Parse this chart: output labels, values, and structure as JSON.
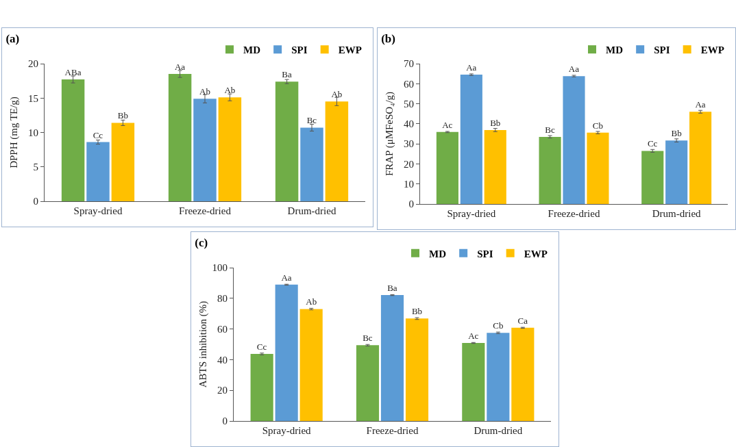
{
  "chart_data": [
    {
      "type": "bar",
      "title": "(a)",
      "ylabel": "DPPH (mg TE/g)",
      "categories": [
        "Spray-dried",
        "Freeze-dried",
        "Drum-dried"
      ],
      "ylim": [
        0,
        20
      ],
      "yticks": [
        0,
        5,
        10,
        15,
        20
      ],
      "grid": false,
      "legend": "top right",
      "series": [
        {
          "name": "MD",
          "color": "#70ad47",
          "values": [
            17.7,
            18.5,
            17.4
          ],
          "errors": [
            0.5,
            0.5,
            0.3
          ],
          "value_labels": [
            "ABa",
            "Aa",
            "Ba"
          ]
        },
        {
          "name": "SPI",
          "color": "#5b9bd5",
          "values": [
            8.6,
            14.9,
            10.7
          ],
          "errors": [
            0.3,
            0.6,
            0.5
          ],
          "value_labels": [
            "Cc",
            "Ab",
            "Bc"
          ]
        },
        {
          "name": "EWP",
          "color": "#ffc000",
          "values": [
            11.4,
            15.1,
            14.5
          ],
          "errors": [
            0.4,
            0.5,
            0.6
          ],
          "value_labels": [
            "Bb",
            "Ab",
            "Ab"
          ]
        }
      ]
    },
    {
      "type": "bar",
      "title": "(b)",
      "ylabel": "FRAP (μMFeSO₄/g)",
      "categories": [
        "Spray-dried",
        "Freeze-dried",
        "Drum-dried"
      ],
      "ylim": [
        0,
        70
      ],
      "yticks": [
        0,
        10,
        20,
        30,
        40,
        50,
        60,
        70
      ],
      "grid": false,
      "legend": "top right",
      "series": [
        {
          "name": "MD",
          "color": "#70ad47",
          "values": [
            35.9,
            33.5,
            26.5
          ],
          "errors": [
            0.3,
            0.6,
            0.7
          ],
          "value_labels": [
            "Ac",
            "Bc",
            "Cc"
          ]
        },
        {
          "name": "SPI",
          "color": "#5b9bd5",
          "values": [
            64.5,
            63.8,
            31.7
          ],
          "errors": [
            0.4,
            0.4,
            0.8
          ],
          "value_labels": [
            "Aa",
            "Aa",
            "Bb"
          ]
        },
        {
          "name": "EWP",
          "color": "#ffc000",
          "values": [
            36.9,
            35.6,
            46.0
          ],
          "errors": [
            0.8,
            0.6,
            0.7
          ],
          "value_labels": [
            "Bb",
            "Cb",
            "Aa"
          ]
        }
      ]
    },
    {
      "type": "bar",
      "title": "(c)",
      "ylabel": "ABTS inhibition (%)",
      "categories": [
        "Spray-dried",
        "Freeze-dried",
        "Drum-dried"
      ],
      "ylim": [
        0,
        100
      ],
      "yticks": [
        0,
        20,
        40,
        60,
        80,
        100
      ],
      "grid": false,
      "legend": "top right",
      "series": [
        {
          "name": "MD",
          "color": "#70ad47",
          "values": [
            43.7,
            49.4,
            50.9
          ],
          "errors": [
            0.6,
            0.5,
            0.3
          ],
          "value_labels": [
            "Cc",
            "Bc",
            "Ac"
          ]
        },
        {
          "name": "SPI",
          "color": "#5b9bd5",
          "values": [
            88.9,
            82.1,
            57.5
          ],
          "errors": [
            0.3,
            0.3,
            0.5
          ],
          "value_labels": [
            "Aa",
            "Ba",
            "Cb"
          ]
        },
        {
          "name": "EWP",
          "color": "#ffc000",
          "values": [
            73.0,
            66.8,
            60.8
          ],
          "errors": [
            0.5,
            0.6,
            0.3
          ],
          "value_labels": [
            "Ab",
            "Bb",
            "Ca"
          ]
        }
      ]
    }
  ]
}
